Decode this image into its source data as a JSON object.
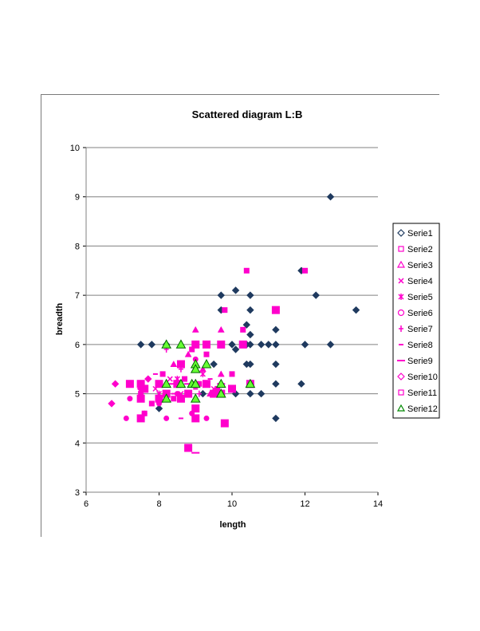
{
  "chart_data": {
    "type": "scatter",
    "title": "Scattered diagram L:B",
    "xlabel": "length",
    "ylabel": "breadth",
    "xlim": [
      6,
      14
    ],
    "ylim": [
      3,
      10
    ],
    "xticks": [
      "6",
      "8",
      "10",
      "12",
      "14"
    ],
    "yticks": [
      "3",
      "4",
      "5",
      "6",
      "7",
      "8",
      "9",
      "10"
    ],
    "grid": "horizontal",
    "legend": "right",
    "series": [
      {
        "name": "Serie1",
        "marker": "diamond",
        "color": "#1f3a5f",
        "points": [
          [
            7.5,
            6.0
          ],
          [
            7.8,
            6.0
          ],
          [
            8.0,
            4.7
          ],
          [
            8.2,
            6.0
          ],
          [
            8.5,
            5.2
          ],
          [
            9.0,
            5.2
          ],
          [
            9.2,
            5.0
          ],
          [
            9.5,
            5.6
          ],
          [
            9.7,
            6.7
          ],
          [
            9.7,
            7.0
          ],
          [
            10.0,
            6.0
          ],
          [
            10.1,
            5.9
          ],
          [
            10.1,
            7.1
          ],
          [
            10.1,
            5.0
          ],
          [
            10.4,
            6.4
          ],
          [
            10.4,
            6.0
          ],
          [
            10.4,
            5.6
          ],
          [
            10.5,
            7.0
          ],
          [
            10.5,
            6.7
          ],
          [
            10.5,
            6.2
          ],
          [
            10.5,
            6.0
          ],
          [
            10.5,
            5.6
          ],
          [
            10.5,
            5.0
          ],
          [
            10.8,
            6.0
          ],
          [
            10.8,
            5.0
          ],
          [
            11.0,
            6.0
          ],
          [
            11.2,
            6.0
          ],
          [
            11.2,
            6.3
          ],
          [
            11.2,
            5.6
          ],
          [
            11.2,
            5.2
          ],
          [
            11.2,
            4.5
          ],
          [
            11.9,
            7.5
          ],
          [
            11.9,
            5.2
          ],
          [
            12.0,
            6.0
          ],
          [
            12.3,
            7.0
          ],
          [
            12.7,
            9.0
          ],
          [
            12.7,
            6.0
          ],
          [
            13.4,
            6.7
          ]
        ]
      },
      {
        "name": "Serie2",
        "marker": "square",
        "color": "#ff00cc",
        "points": [
          [
            7.5,
            5.0
          ],
          [
            7.6,
            4.6
          ],
          [
            7.8,
            4.8
          ],
          [
            8.1,
            5.4
          ],
          [
            8.4,
            4.9
          ],
          [
            8.7,
            5.3
          ],
          [
            8.9,
            5.9
          ],
          [
            9.1,
            5.2
          ],
          [
            9.3,
            5.8
          ],
          [
            9.6,
            5.1
          ],
          [
            9.8,
            6.7
          ],
          [
            10.0,
            5.4
          ],
          [
            10.3,
            6.3
          ],
          [
            10.4,
            7.5
          ],
          [
            11.2,
            6.7
          ],
          [
            12.0,
            7.5
          ]
        ]
      },
      {
        "name": "Serie3",
        "marker": "triangle",
        "color": "#ff00cc",
        "points": [
          [
            8.2,
            6.0
          ],
          [
            8.4,
            5.6
          ],
          [
            8.6,
            5.2
          ],
          [
            8.8,
            5.8
          ],
          [
            9.0,
            6.3
          ],
          [
            9.2,
            5.5
          ],
          [
            9.4,
            5.0
          ],
          [
            9.7,
            6.3
          ],
          [
            9.7,
            5.4
          ],
          [
            10.5,
            5.2
          ]
        ]
      },
      {
        "name": "Serie4",
        "marker": "x",
        "color": "#ff00cc",
        "points": [
          [
            7.9,
            5.1
          ],
          [
            8.3,
            5.3
          ],
          [
            8.6,
            5.0
          ],
          [
            9.0,
            5.2
          ],
          [
            9.5,
            5.1
          ]
        ]
      },
      {
        "name": "Serie5",
        "marker": "star",
        "color": "#ff00cc",
        "points": [
          [
            8.0,
            5.0
          ],
          [
            8.5,
            5.3
          ],
          [
            9.2,
            5.4
          ]
        ]
      },
      {
        "name": "Serie6",
        "marker": "circle",
        "color": "#ff00cc",
        "points": [
          [
            7.1,
            4.5
          ],
          [
            7.2,
            4.9
          ],
          [
            7.6,
            4.6
          ],
          [
            8.0,
            4.8
          ],
          [
            8.2,
            4.5
          ],
          [
            8.5,
            5.0
          ],
          [
            8.9,
            4.6
          ],
          [
            9.0,
            5.7
          ],
          [
            9.3,
            4.5
          ],
          [
            9.6,
            5.0
          ]
        ]
      },
      {
        "name": "Serie7",
        "marker": "plus",
        "color": "#ff00cc",
        "points": [
          [
            8.2,
            5.9
          ],
          [
            8.6,
            5.5
          ],
          [
            9.1,
            5.0
          ]
        ]
      },
      {
        "name": "Serie8",
        "marker": "dash",
        "color": "#ff00cc",
        "points": [
          [
            7.9,
            5.4
          ],
          [
            8.4,
            5.0
          ],
          [
            8.6,
            4.5
          ],
          [
            9.0,
            5.1
          ],
          [
            9.4,
            5.3
          ]
        ]
      },
      {
        "name": "Serie9",
        "marker": "longdash",
        "color": "#ff00cc",
        "points": [
          [
            8.3,
            5.2
          ],
          [
            8.8,
            5.2
          ],
          [
            9.0,
            3.8
          ],
          [
            9.7,
            5.2
          ]
        ]
      },
      {
        "name": "Serie10",
        "marker": "diamond",
        "color": "#ff00cc",
        "points": [
          [
            6.7,
            4.8
          ],
          [
            6.8,
            5.2
          ],
          [
            7.5,
            5.1
          ],
          [
            7.7,
            5.3
          ],
          [
            8.2,
            5.0
          ]
        ]
      },
      {
        "name": "Serie11",
        "marker": "bigsquare",
        "color": "#ff00cc",
        "points": [
          [
            7.2,
            5.2
          ],
          [
            7.5,
            5.2
          ],
          [
            7.5,
            4.9
          ],
          [
            7.5,
            4.5
          ],
          [
            7.6,
            5.1
          ],
          [
            8.0,
            5.2
          ],
          [
            8.0,
            4.9
          ],
          [
            8.2,
            5.0
          ],
          [
            8.5,
            5.2
          ],
          [
            8.6,
            5.6
          ],
          [
            8.6,
            4.9
          ],
          [
            8.8,
            3.9
          ],
          [
            8.8,
            5.0
          ],
          [
            9.0,
            6.0
          ],
          [
            9.0,
            4.7
          ],
          [
            9.0,
            4.5
          ],
          [
            9.3,
            6.0
          ],
          [
            9.3,
            5.2
          ],
          [
            9.5,
            5.0
          ],
          [
            9.7,
            6.0
          ],
          [
            9.7,
            5.0
          ],
          [
            9.8,
            4.4
          ],
          [
            10.0,
            5.1
          ],
          [
            10.3,
            6.0
          ],
          [
            10.5,
            5.2
          ],
          [
            11.2,
            6.7
          ]
        ]
      },
      {
        "name": "Serie12",
        "marker": "triangle",
        "color": "#00cc00",
        "fill": "#66ff33",
        "points": [
          [
            8.2,
            6.0
          ],
          [
            8.2,
            5.2
          ],
          [
            8.2,
            4.9
          ],
          [
            8.6,
            6.0
          ],
          [
            8.6,
            5.2
          ],
          [
            8.9,
            5.2
          ],
          [
            9.0,
            5.6
          ],
          [
            9.0,
            5.5
          ],
          [
            9.0,
            5.2
          ],
          [
            9.0,
            4.9
          ],
          [
            9.3,
            5.6
          ],
          [
            9.7,
            5.2
          ],
          [
            9.7,
            5.0
          ],
          [
            10.5,
            5.2
          ]
        ]
      }
    ]
  }
}
